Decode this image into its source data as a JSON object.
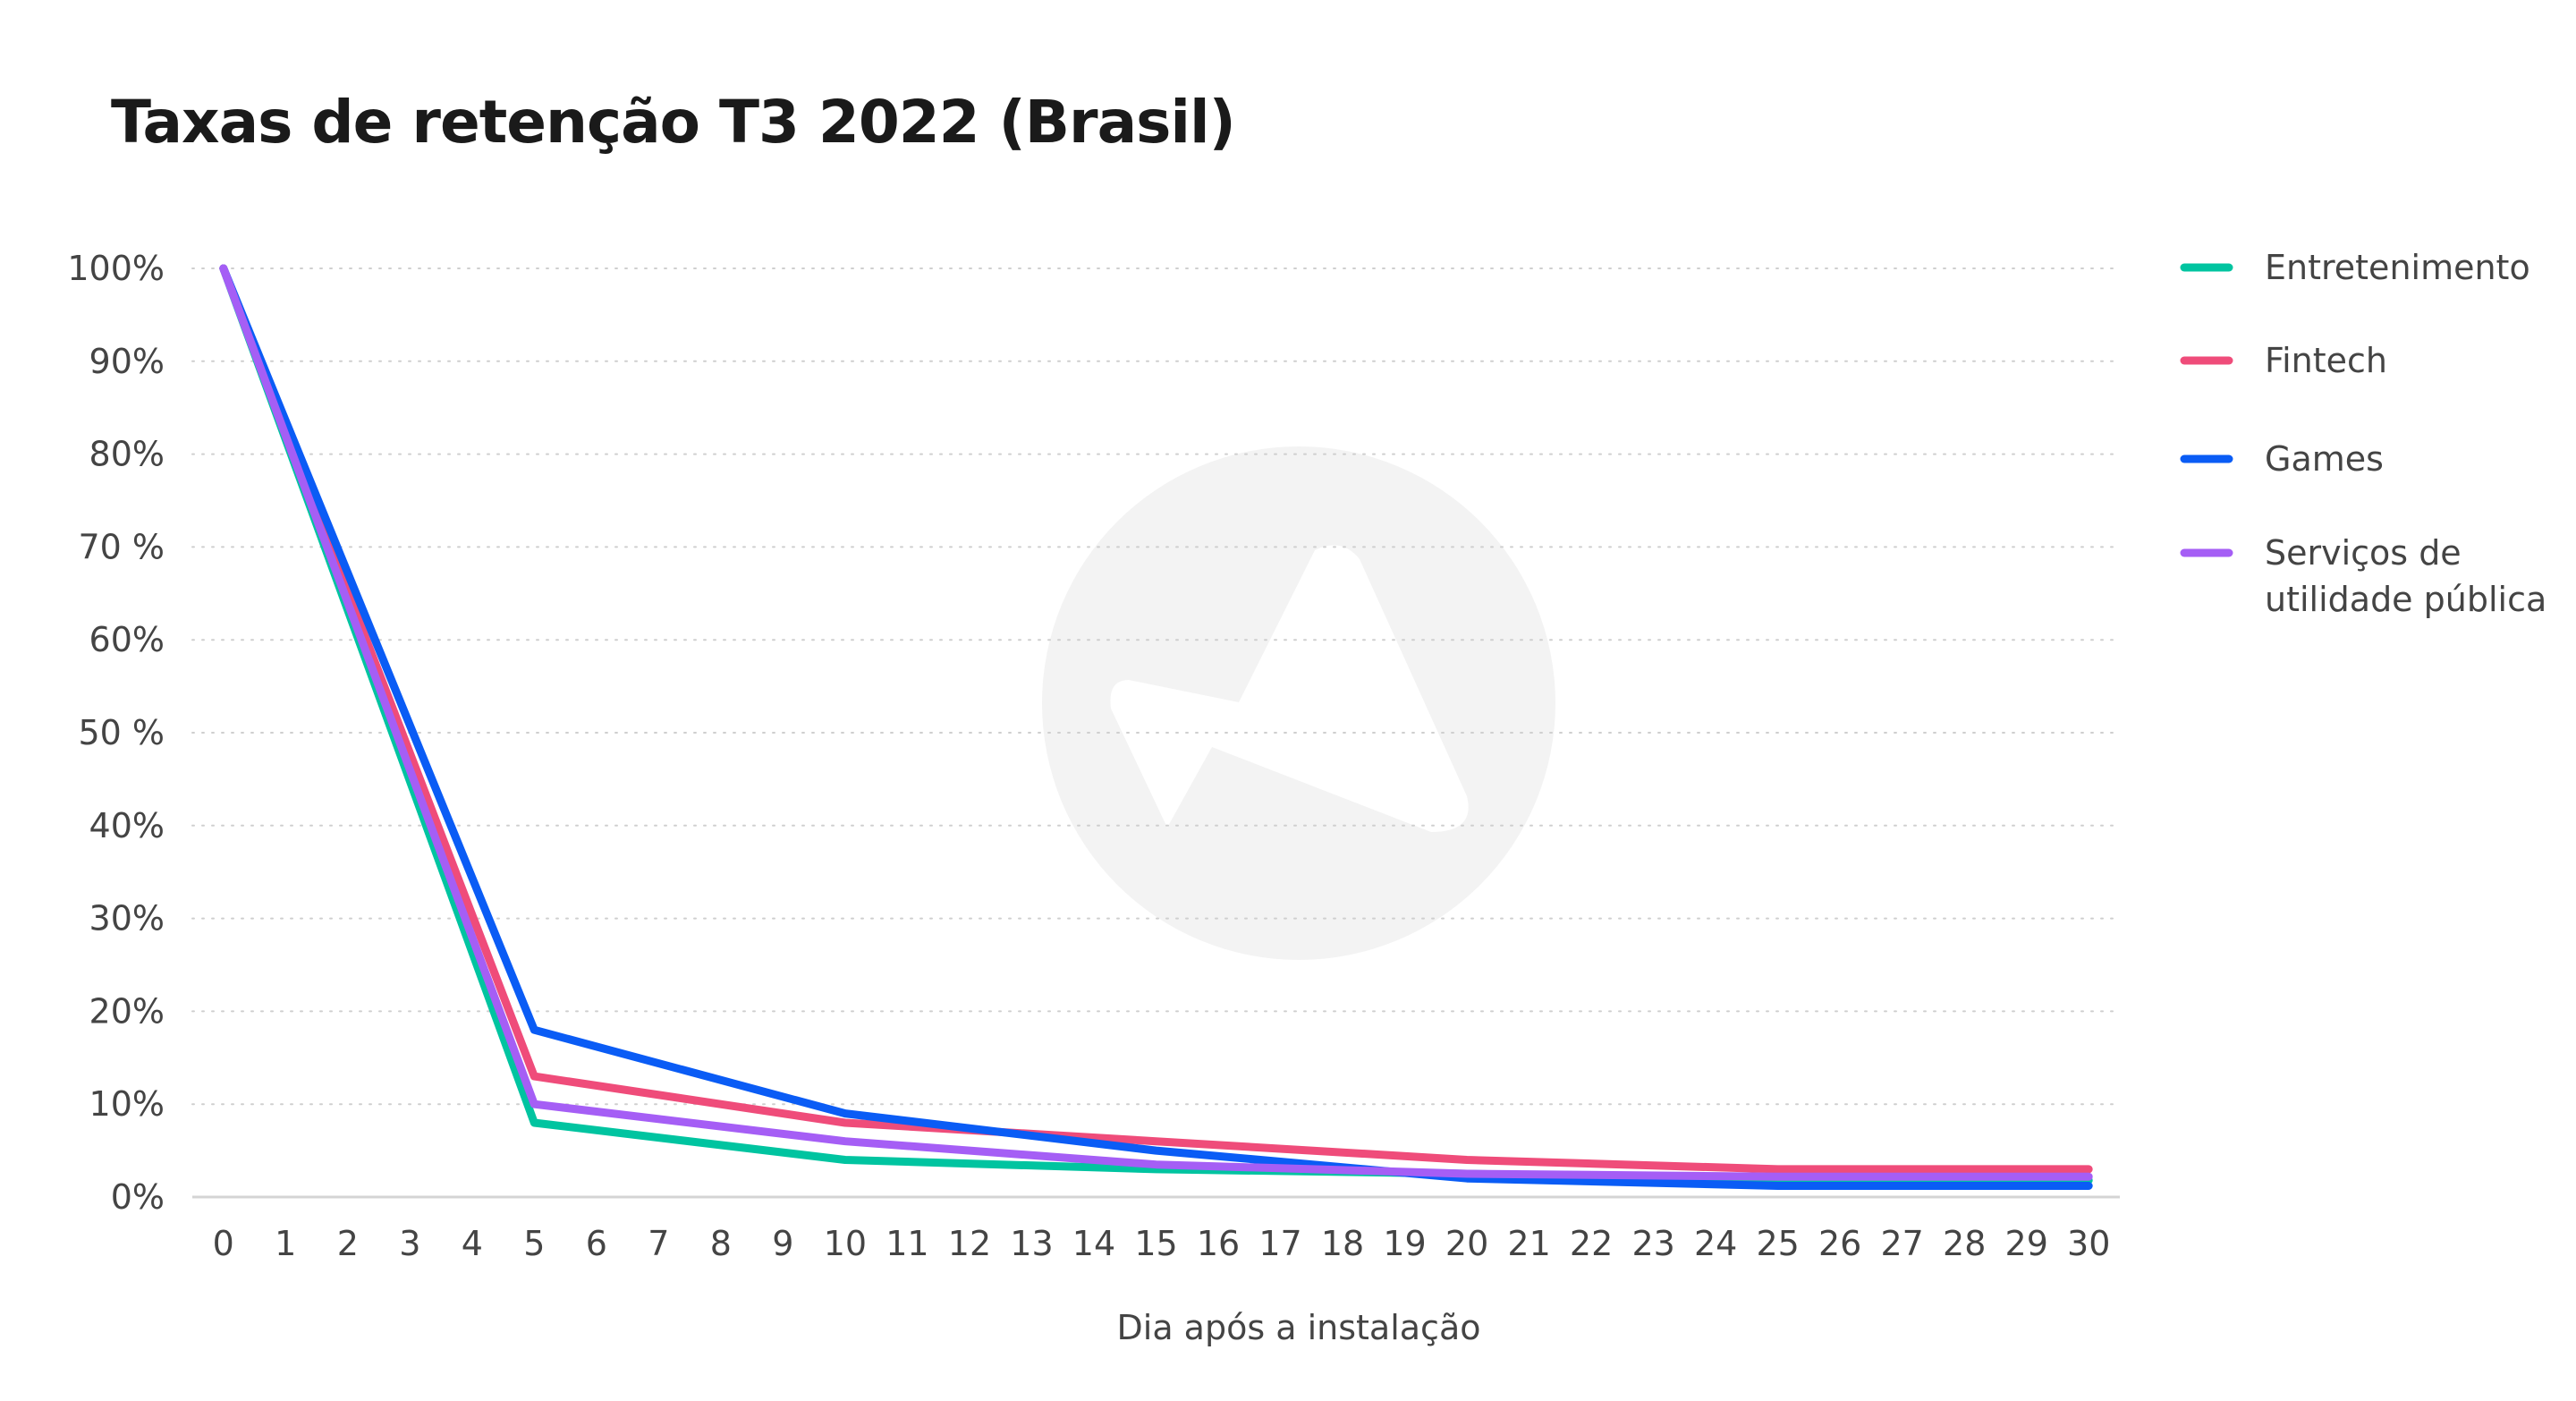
{
  "chart_data": {
    "type": "line",
    "title": "Taxas de retenção T3 2022 (Brasil)",
    "xlabel": "Dia após a instalação",
    "ylabel": "",
    "x": [
      0,
      1,
      2,
      3,
      4,
      5,
      6,
      7,
      8,
      9,
      10,
      11,
      12,
      13,
      14,
      15,
      16,
      17,
      18,
      19,
      20,
      21,
      22,
      23,
      24,
      25,
      26,
      27,
      28,
      29,
      30
    ],
    "x_ticks": [
      "0",
      "1",
      "2",
      "3",
      "4",
      "5",
      "6",
      "7",
      "8",
      "9",
      "10",
      "11",
      "12",
      "13",
      "14",
      "15",
      "16",
      "17",
      "18",
      "19",
      "20",
      "21",
      "22",
      "23",
      "24",
      "25",
      "26",
      "27",
      "28",
      "29",
      "30"
    ],
    "y_ticks": [
      "100%",
      "90%",
      "80%",
      "70 %",
      "60%",
      "50 %",
      "40%",
      "30%",
      "20%",
      "10%",
      "0%"
    ],
    "y_tick_values": [
      100,
      90,
      80,
      70,
      60,
      50,
      40,
      30,
      20,
      10,
      0
    ],
    "ylim": [
      0,
      100
    ],
    "xlim": [
      -0.5,
      30.5
    ],
    "grid": "horizontal dotted",
    "legend_position": "right",
    "series": [
      {
        "name": "Entretenimento",
        "legend_lines": [
          "Entretenimento"
        ],
        "color": "#00c4a0",
        "x": [
          0,
          5,
          10,
          15,
          20,
          25,
          30
        ],
        "y": [
          100,
          8,
          4,
          3,
          2.5,
          1.8,
          1.8
        ]
      },
      {
        "name": "Fintech",
        "legend_lines": [
          "Fintech"
        ],
        "color": "#ef4c7a",
        "x": [
          0,
          5,
          10,
          15,
          20,
          25,
          30
        ],
        "y": [
          100,
          13,
          8,
          6,
          4,
          3,
          3
        ]
      },
      {
        "name": "Games",
        "legend_lines": [
          "Games"
        ],
        "color": "#0a5cf5",
        "x": [
          0,
          5,
          10,
          15,
          20,
          25,
          30
        ],
        "y": [
          100,
          18,
          9,
          5,
          2,
          1.2,
          1.2
        ]
      },
      {
        "name": "Serviços de utilidade pública",
        "legend_lines": [
          "Serviços de",
          "utilidade pública"
        ],
        "color": "#a55ef5",
        "x": [
          0,
          5,
          10,
          15,
          20,
          25,
          30
        ],
        "y": [
          100,
          10,
          6,
          3.5,
          2.5,
          2.2,
          2.2
        ]
      }
    ]
  }
}
